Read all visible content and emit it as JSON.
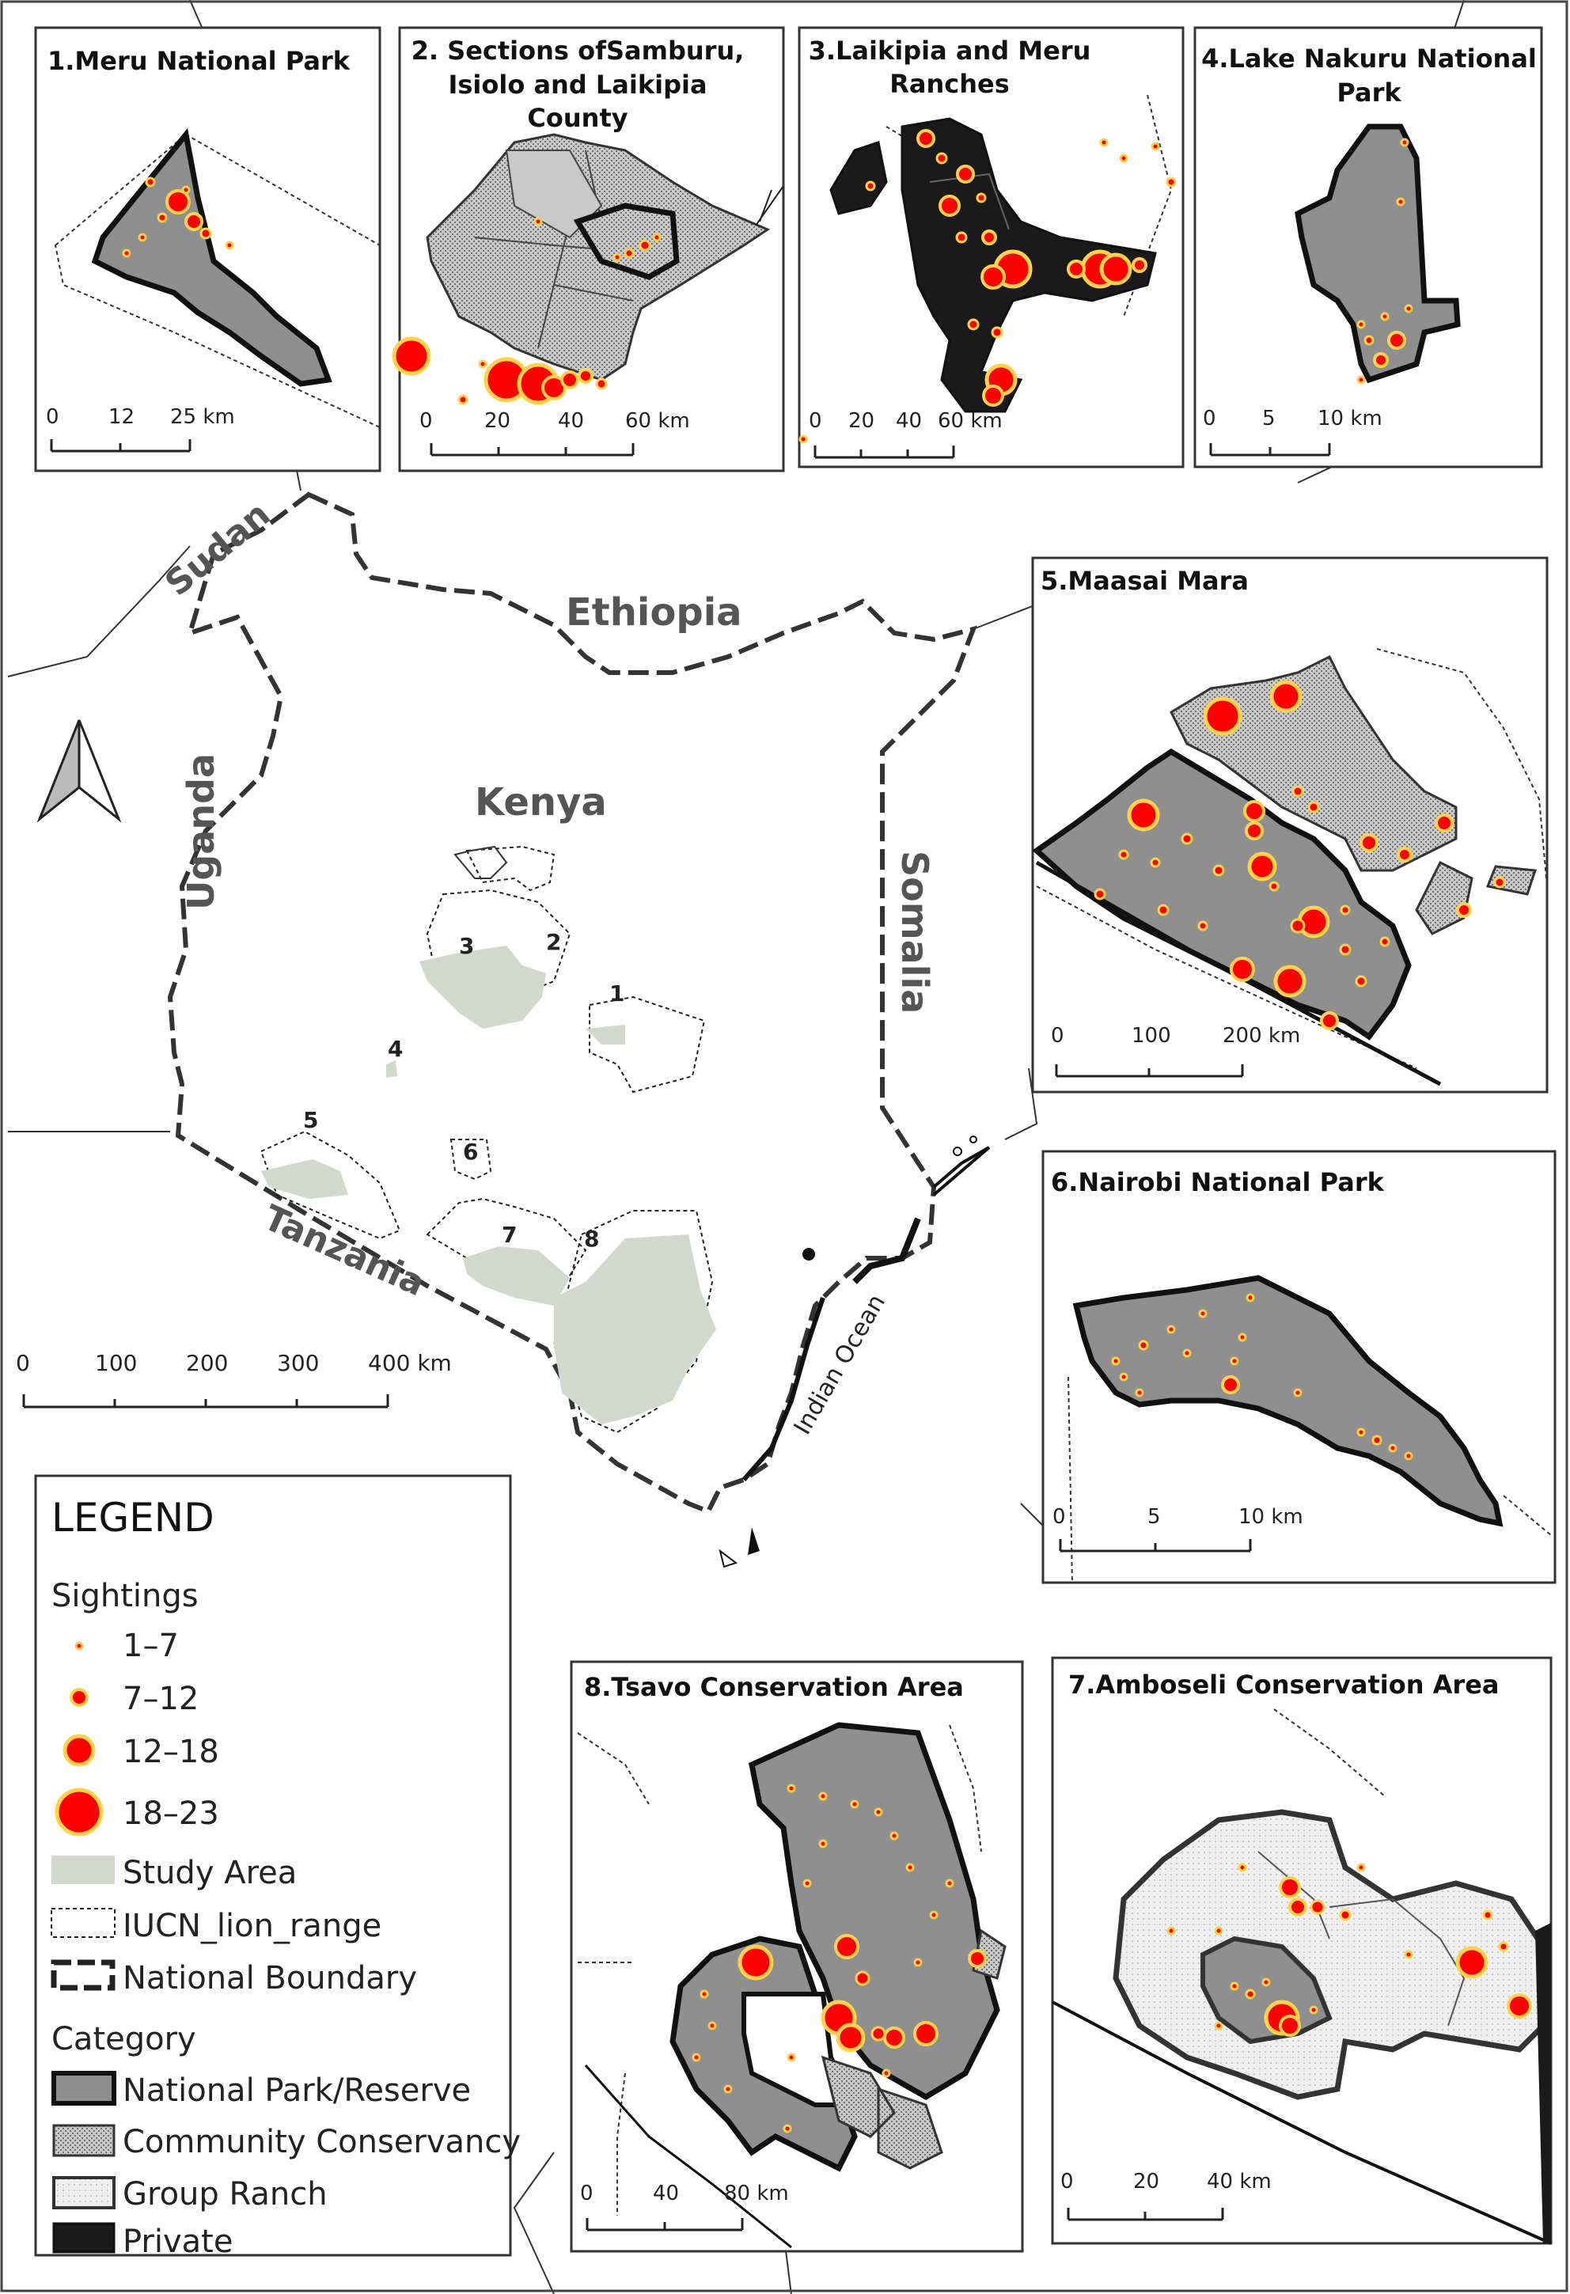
{
  "colors": {
    "park": "#8f8f8f",
    "study_area": "#d3d8cc",
    "dot_fill": "#ff0000",
    "dot_ring": "#ffd24a",
    "frame": "#333333"
  },
  "countries": {
    "kenya": "Kenya",
    "ethiopia": "Ethiopia",
    "somalia": "Somalia",
    "uganda": "Uganda",
    "sudan": "Sudan",
    "tanzania": "Tanzania",
    "ocean": "Indian Ocean"
  },
  "area_numbers": [
    "1",
    "2",
    "3",
    "4",
    "5",
    "6",
    "7",
    "8"
  ],
  "main_scale": [
    "0",
    "100",
    "200",
    "300",
    "400 km"
  ],
  "insets": [
    {
      "title_lines": [
        "1.Meru National Park"
      ],
      "scale": [
        "0",
        "12",
        "25 km"
      ]
    },
    {
      "title_lines": [
        "2. Sections ofSamburu,",
        "Isiolo and Laikipia",
        "County"
      ],
      "scale": [
        "0",
        "20",
        "40",
        "60 km"
      ]
    },
    {
      "title_lines": [
        "3.Laikipia and Meru",
        "Ranches"
      ],
      "scale": [
        "0",
        "20",
        "40",
        "60 km"
      ]
    },
    {
      "title_lines": [
        "4.Lake Nakuru National",
        "Park"
      ],
      "scale": [
        "0",
        "5",
        "10 km"
      ]
    },
    {
      "title_lines": [
        "5.Maasai Mara"
      ],
      "scale": [
        "0",
        "100",
        "200 km"
      ]
    },
    {
      "title_lines": [
        "6.Nairobi National Park"
      ],
      "scale": [
        "0",
        "5",
        "10 km"
      ]
    },
    {
      "title_lines": [
        "8.Tsavo Conservation Area"
      ],
      "scale": [
        "0",
        "40",
        "80 km"
      ]
    },
    {
      "title_lines": [
        "7.Amboseli Conservation Area"
      ],
      "scale": [
        "0",
        "20",
        "40 km"
      ]
    }
  ],
  "legend": {
    "title": "LEGEND",
    "sightings_heading": "Sightings",
    "sightings": [
      "1–7",
      "7–12",
      "12–18",
      "18–23"
    ],
    "study_area": "Study Area",
    "iucn": "IUCN_lion_range",
    "boundary": "National Boundary",
    "category_heading": "Category",
    "categories": [
      "National Park/Reserve",
      "Community Conservancy",
      "Group Ranch",
      "Private"
    ]
  }
}
